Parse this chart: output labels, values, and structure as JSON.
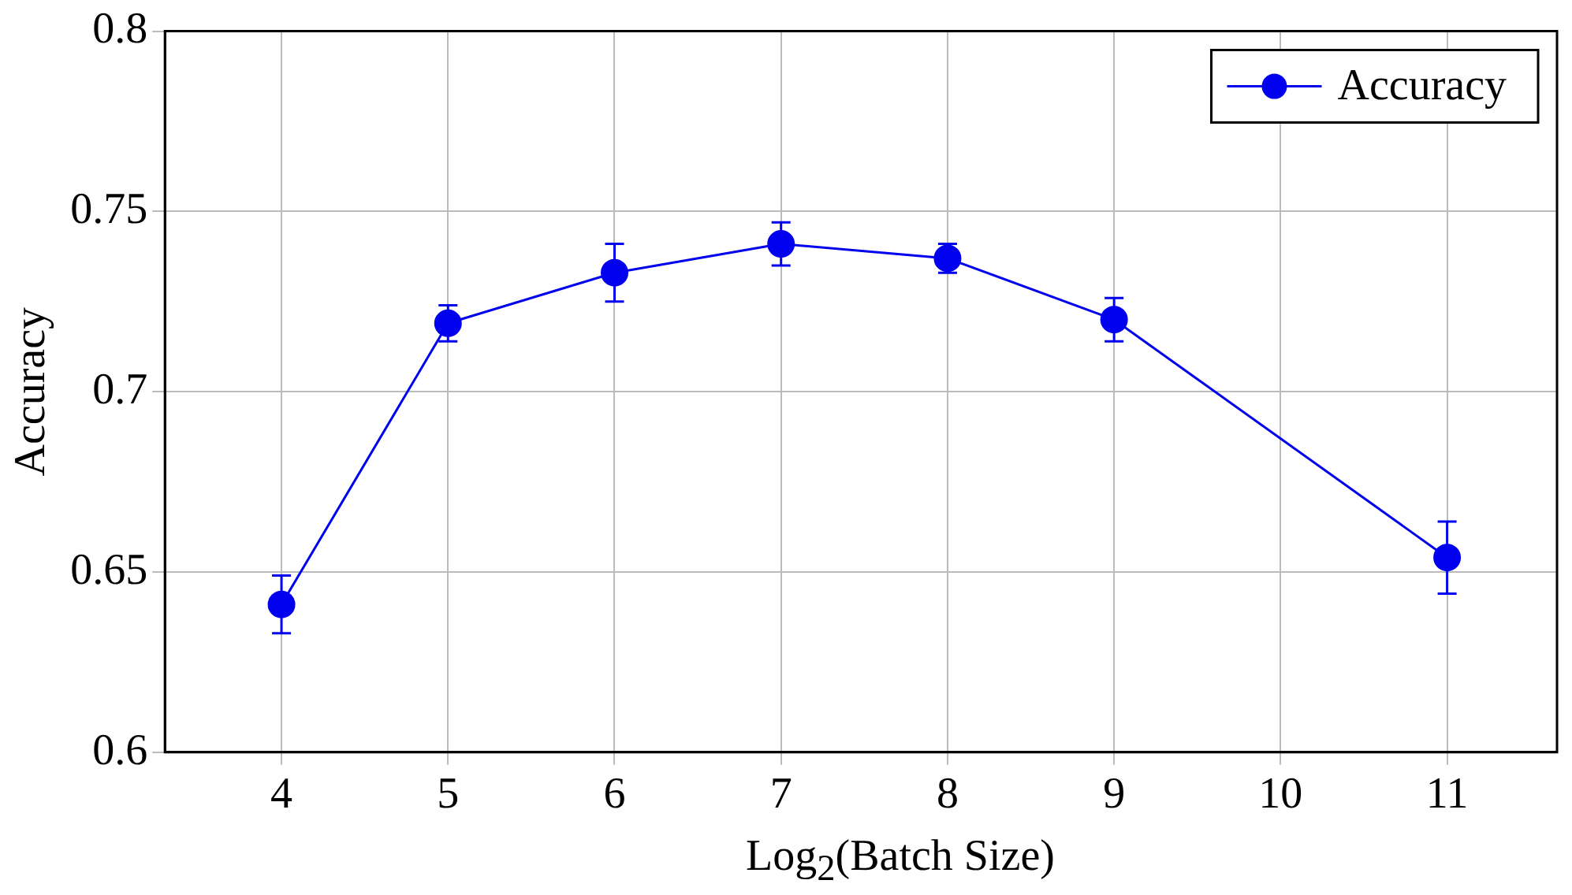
{
  "chart_data": {
    "type": "line",
    "xlabel": "Log$_{2}$(Batch Size)",
    "ylabel": "Accuracy",
    "x": [
      4,
      5,
      6,
      7,
      8,
      9,
      11
    ],
    "series": [
      {
        "name": "Accuracy",
        "color": "#0000ee",
        "values": [
          0.641,
          0.719,
          0.733,
          0.741,
          0.737,
          0.72,
          0.654
        ],
        "errors": [
          0.008,
          0.005,
          0.008,
          0.006,
          0.004,
          0.006,
          0.01
        ]
      }
    ],
    "xlim": [
      3.3,
      11.66
    ],
    "xticks": [
      4,
      5,
      6,
      7,
      8,
      9,
      10,
      11
    ],
    "ylim": [
      0.6,
      0.8
    ],
    "yticks": [
      0.6,
      0.65,
      0.7,
      0.75,
      0.8
    ],
    "grid": true,
    "legend": "top right",
    "marker": "circle",
    "line_style": "solid"
  }
}
